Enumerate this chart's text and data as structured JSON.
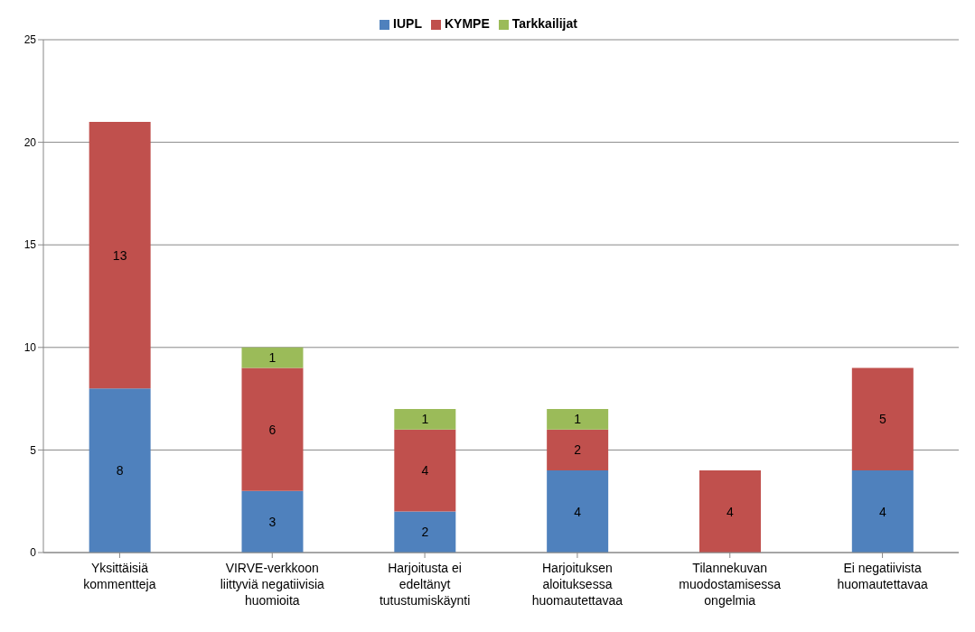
{
  "chart_data": {
    "type": "bar",
    "stacked": true,
    "categories": [
      "Yksittäisiä kommentteja",
      "VIRVE-verkkoon liittyviä negatiivisia huomioita",
      "Harjoitusta ei edeltänyt tutustumiskäynti",
      "Harjoituksen aloituksessa huomautettavaa",
      "Tilannekuvan muodostamisessa ongelmia",
      "Ei negatiivista huomautettavaa"
    ],
    "series": [
      {
        "name": "IUPL",
        "color": "#4f81bd",
        "values": [
          8,
          3,
          2,
          4,
          null,
          4
        ]
      },
      {
        "name": "KYMPE",
        "color": "#c0504d",
        "values": [
          13,
          6,
          4,
          2,
          4,
          5
        ]
      },
      {
        "name": "Tarkkailijat",
        "color": "#9bbb59",
        "values": [
          null,
          1,
          1,
          1,
          null,
          null
        ]
      }
    ],
    "ylim": [
      0,
      25
    ],
    "yticks": [
      0,
      5,
      10,
      15,
      20,
      25
    ],
    "grid": "y",
    "legend": "top",
    "data_labels": true
  }
}
